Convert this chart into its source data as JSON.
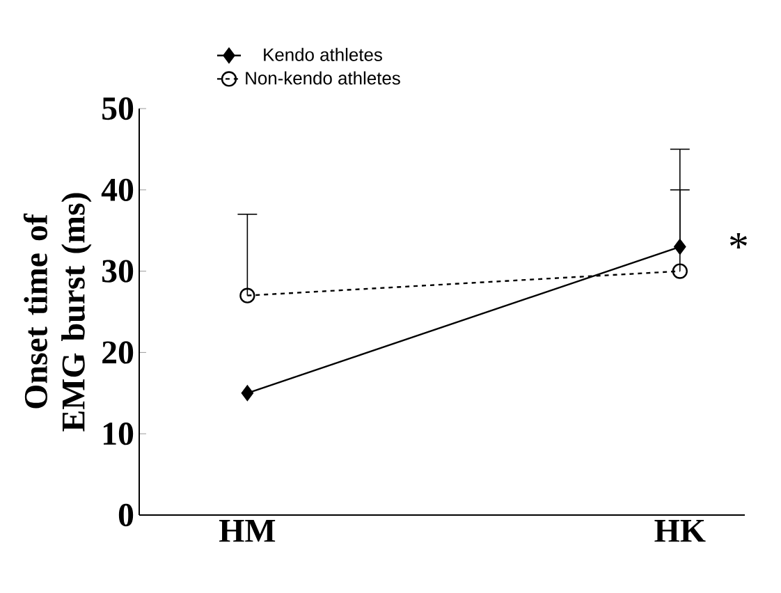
{
  "chart_data": {
    "type": "line",
    "ylabel": "Onset time of EMG burst (ms)",
    "categories": [
      "HM",
      "HK"
    ],
    "series": [
      {
        "name": "Kendo athletes",
        "color": "#000000",
        "values": [
          15,
          33
        ],
        "errors": [
          null,
          [
            33,
            45
          ]
        ],
        "marker": "diamond",
        "line_style": "solid"
      },
      {
        "name": "Non-kendo athletes",
        "color": "#000000",
        "values": [
          27,
          30
        ],
        "errors": [
          [
            27,
            37
          ],
          [
            30,
            40
          ]
        ],
        "marker": "circle",
        "line_style": "dashed"
      }
    ],
    "ylim": [
      0,
      50
    ],
    "yticks": [
      0,
      10,
      20,
      30,
      40,
      50
    ],
    "legend": "top",
    "grid": false,
    "annotations": [
      {
        "text": "*",
        "x": "HK",
        "y": 33
      }
    ]
  }
}
